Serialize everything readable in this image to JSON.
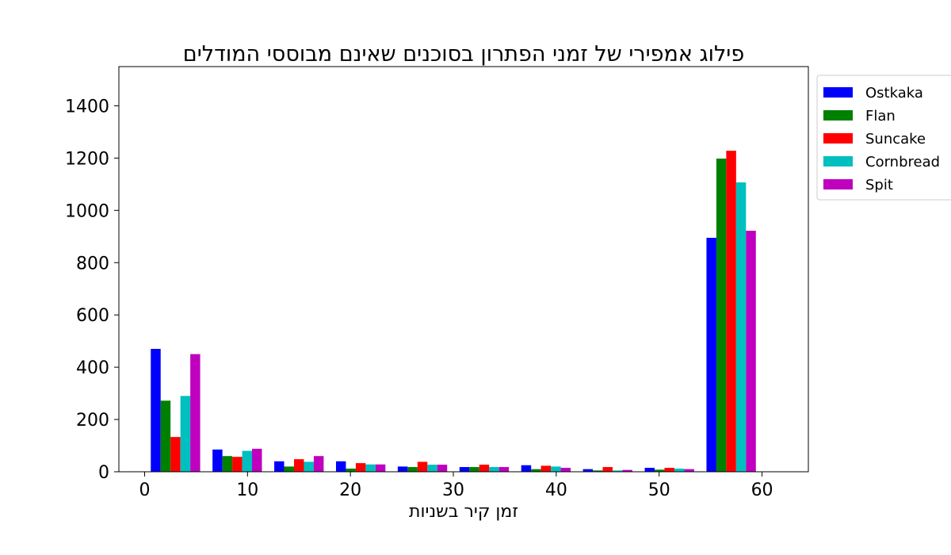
{
  "chart_data": {
    "type": "bar",
    "title": "פילוג אמפירי של זמני הפתרון בסוכנים שאינם מבוססי המודלים",
    "xlabel": "זמן קיר בשניות",
    "ylabel": "",
    "xlim": [
      -2.5,
      64.5
    ],
    "ylim": [
      0,
      1550
    ],
    "xticks": [
      0,
      10,
      20,
      30,
      40,
      50,
      60
    ],
    "yticks": [
      0,
      200,
      400,
      600,
      800,
      1000,
      1200,
      1400
    ],
    "grid": false,
    "legend_position": "outside-top-right",
    "bin_edges": [
      0,
      6,
      12,
      18,
      24,
      30,
      36,
      42,
      48,
      54,
      60
    ],
    "series": [
      {
        "name": "Ostkaka",
        "color": "#0000ff",
        "values": [
          470,
          85,
          40,
          40,
          20,
          18,
          25,
          10,
          15,
          895
        ]
      },
      {
        "name": "Flan",
        "color": "#008000",
        "values": [
          272,
          60,
          20,
          12,
          18,
          18,
          10,
          5,
          8,
          1198
        ]
      },
      {
        "name": "Suncake",
        "color": "#ff0000",
        "values": [
          133,
          57,
          48,
          33,
          38,
          27,
          23,
          18,
          15,
          1228
        ]
      },
      {
        "name": "Cornbread",
        "color": "#00bfbf",
        "values": [
          290,
          80,
          38,
          28,
          27,
          18,
          20,
          5,
          12,
          1107
        ]
      },
      {
        "name": "Spit",
        "color": "#bf00bf",
        "values": [
          450,
          88,
          60,
          28,
          27,
          18,
          15,
          7,
          10,
          922
        ]
      }
    ]
  }
}
